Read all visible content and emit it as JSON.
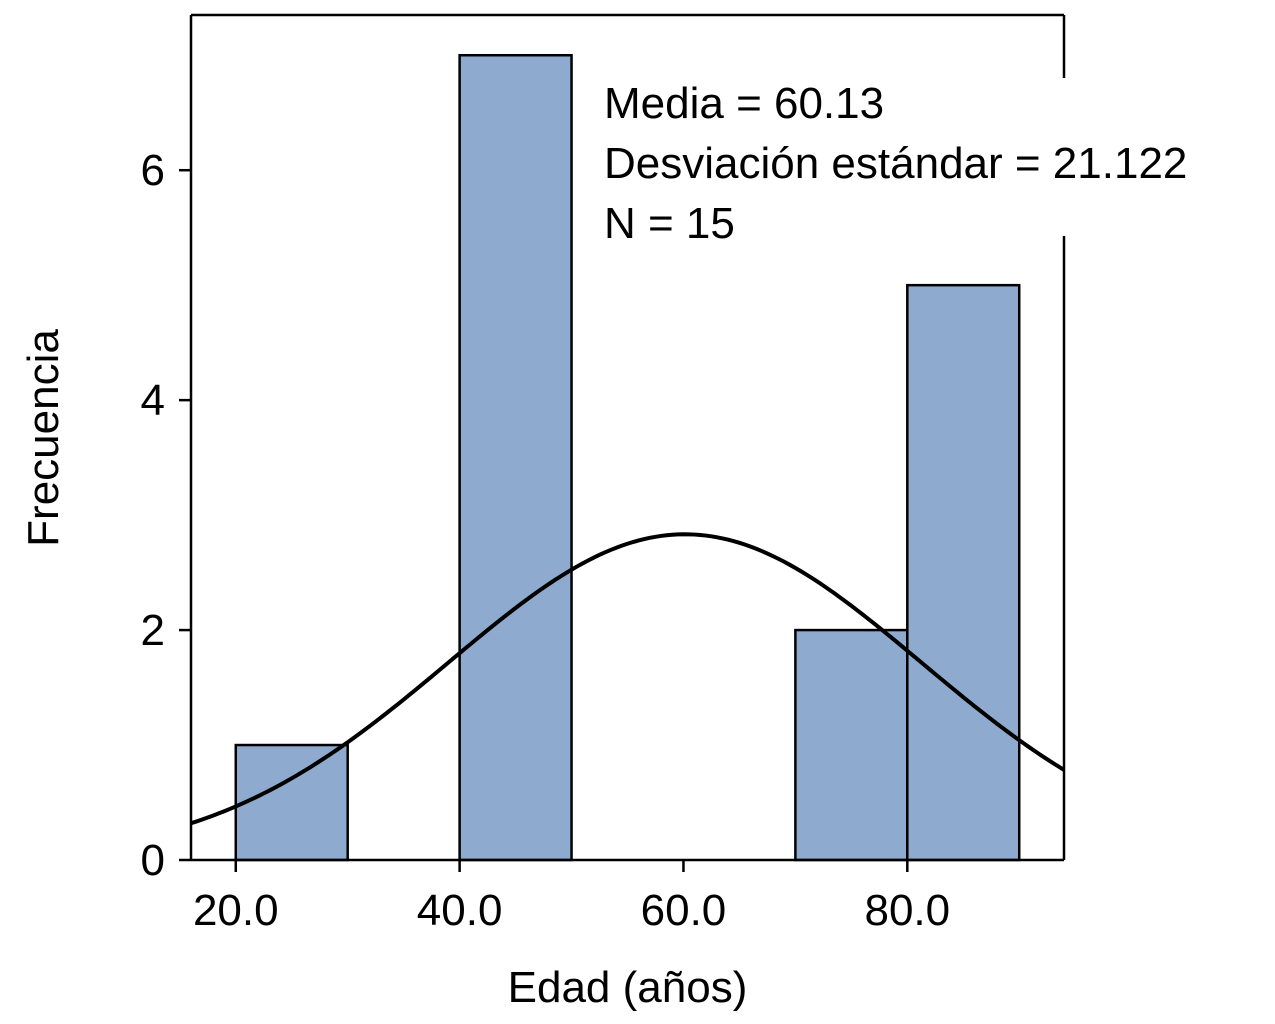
{
  "chart_data": {
    "type": "bar",
    "subtype": "histogram",
    "bins": [
      {
        "x0": 20,
        "x1": 30,
        "count": 1
      },
      {
        "x0": 40,
        "x1": 50,
        "count": 7
      },
      {
        "x0": 70,
        "x1": 80,
        "count": 2
      },
      {
        "x0": 80,
        "x1": 90,
        "count": 5
      }
    ],
    "normal_curve": {
      "mean": 60.13,
      "sd": 21.122,
      "n": 15,
      "bin_width": 10
    },
    "xlabel": "Edad (años)",
    "ylabel": "Frecuencia",
    "xlim": [
      16,
      94
    ],
    "ylim": [
      0,
      7.35
    ],
    "x_ticks": [
      {
        "value": 20,
        "label": "20.0"
      },
      {
        "value": 40,
        "label": "40.0"
      },
      {
        "value": 60,
        "label": "60.0"
      },
      {
        "value": 80,
        "label": "80.0"
      }
    ],
    "y_ticks": [
      {
        "value": 0,
        "label": "0"
      },
      {
        "value": 2,
        "label": "2"
      },
      {
        "value": 4,
        "label": "4"
      },
      {
        "value": 6,
        "label": "6"
      }
    ],
    "stats_text": [
      "Media = 60.13",
      "Desviación estándar = 21.122",
      "N = 15"
    ],
    "legend": "top-right",
    "grid": false,
    "colors": {
      "bar_fill": "#8eabcf",
      "bar_stroke": "#000000",
      "curve": "#000000"
    }
  }
}
